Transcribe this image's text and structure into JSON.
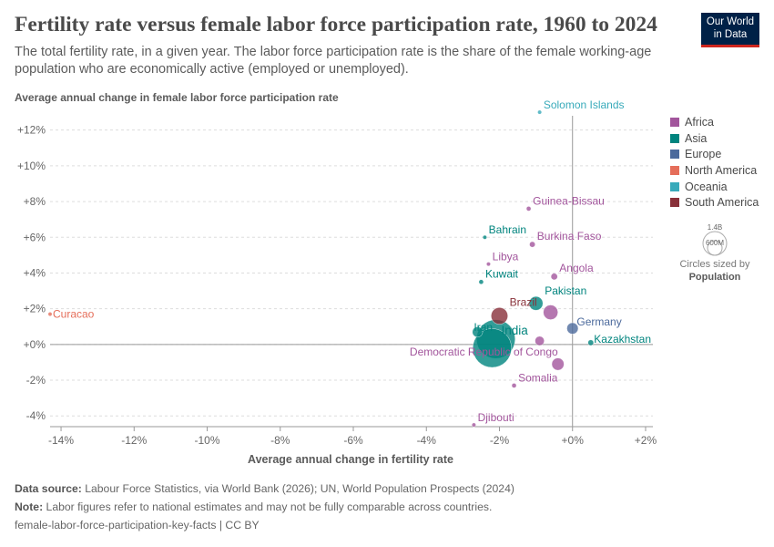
{
  "header": {
    "title": "Fertility rate versus female labor force participation rate, 1960 to 2024",
    "subtitle": "The total fertility rate, in a given year. The labor force participation rate is the share of the female working-age population who are economically active (employed or unemployed).",
    "logo_line1": "Our World",
    "logo_line2": "in Data"
  },
  "axes": {
    "ylabel": "Average annual change in female labor force participation rate",
    "xlabel": "Average annual change in fertility rate"
  },
  "chart_data": {
    "type": "scatter",
    "xlim": [
      -14.3,
      2.2
    ],
    "ylim": [
      -4.6,
      12.8
    ],
    "x_ticks": [
      -14,
      -12,
      -10,
      -8,
      -6,
      -4,
      -2,
      0,
      2
    ],
    "x_tick_labels": [
      "-14%",
      "-12%",
      "-10%",
      "-8%",
      "-6%",
      "-4%",
      "-2%",
      "+0%",
      "+2%"
    ],
    "y_ticks": [
      -4,
      -2,
      0,
      2,
      4,
      6,
      8,
      10,
      12
    ],
    "y_tick_labels": [
      "-4%",
      "-2%",
      "+0%",
      "+2%",
      "+4%",
      "+6%",
      "+8%",
      "+10%",
      "+12%"
    ],
    "grid": "horizontal dashed",
    "legend_position": "right",
    "colors": {
      "Africa": "#a2559c",
      "Asia": "#00847e",
      "Europe": "#4c6a9c",
      "North America": "#e56e5a",
      "Oceania": "#38aaba",
      "South America": "#883039"
    },
    "series_names": [
      "Africa",
      "Asia",
      "Europe",
      "North America",
      "Oceania",
      "South America"
    ],
    "labeled_points": [
      {
        "label": "Solomon Islands",
        "x": -0.9,
        "y": 13.0,
        "region": "Oceania",
        "size": 1
      },
      {
        "label": "Guinea-Bissau",
        "x": -1.2,
        "y": 7.6,
        "region": "Africa",
        "size": 2
      },
      {
        "label": "Bahrain",
        "x": -2.4,
        "y": 6.0,
        "region": "Asia",
        "size": 1
      },
      {
        "label": "Burkina Faso",
        "x": -1.1,
        "y": 5.6,
        "region": "Africa",
        "size": 3
      },
      {
        "label": "Libya",
        "x": -2.3,
        "y": 4.5,
        "region": "Africa",
        "size": 1
      },
      {
        "label": "Angola",
        "x": -0.5,
        "y": 3.8,
        "region": "Africa",
        "size": 4
      },
      {
        "label": "Kuwait",
        "x": -2.5,
        "y": 3.5,
        "region": "Asia",
        "size": 2
      },
      {
        "label": "Pakistan",
        "x": -1.0,
        "y": 2.3,
        "region": "Asia",
        "size": 18
      },
      {
        "label": "Brazil",
        "x": -2.0,
        "y": 1.6,
        "region": "South America",
        "size": 26
      },
      {
        "label": "Curacao",
        "x": -14.3,
        "y": 1.7,
        "region": "North America",
        "size": 1
      },
      {
        "label": "Germany",
        "x": 0.0,
        "y": 0.9,
        "region": "Europe",
        "size": 12
      },
      {
        "label": "Iran",
        "x": -2.6,
        "y": 0.7,
        "region": "Asia",
        "size": 10
      },
      {
        "label": "India",
        "x": -2.1,
        "y": 0.3,
        "region": "Asia",
        "size": 140
      },
      {
        "label": "Kazakhstan",
        "x": 0.5,
        "y": 0.1,
        "region": "Asia",
        "size": 3
      },
      {
        "label": "Democratic Republic of Congo",
        "x": -0.9,
        "y": 0.2,
        "region": "Africa",
        "size": 8
      },
      {
        "label": "Somalia",
        "x": -1.6,
        "y": -2.3,
        "region": "Africa",
        "size": 2
      },
      {
        "label": "Djibouti",
        "x": -2.7,
        "y": -4.5,
        "region": "Africa",
        "size": 1
      },
      {
        "label": "",
        "x": -2.2,
        "y": -0.2,
        "region": "Asia",
        "size": 140
      },
      {
        "label": "",
        "x": -0.6,
        "y": 1.8,
        "region": "Africa",
        "size": 20
      },
      {
        "label": "",
        "x": -0.4,
        "y": -1.1,
        "region": "Africa",
        "size": 14
      }
    ],
    "size_legend": {
      "title": "Circles sized by",
      "variable": "Population",
      "max_label": "1.4B",
      "min_label": "600M"
    }
  },
  "footer": {
    "source_label": "Data source:",
    "source_text": "Labour Force Statistics, via World Bank (2026); UN, World Population Prospects (2024)",
    "note_label": "Note:",
    "note_text": "Labor figures refer to national estimates and may not be fully comparable across countries.",
    "license": "female-labor-force-participation-key-facts | CC BY"
  }
}
